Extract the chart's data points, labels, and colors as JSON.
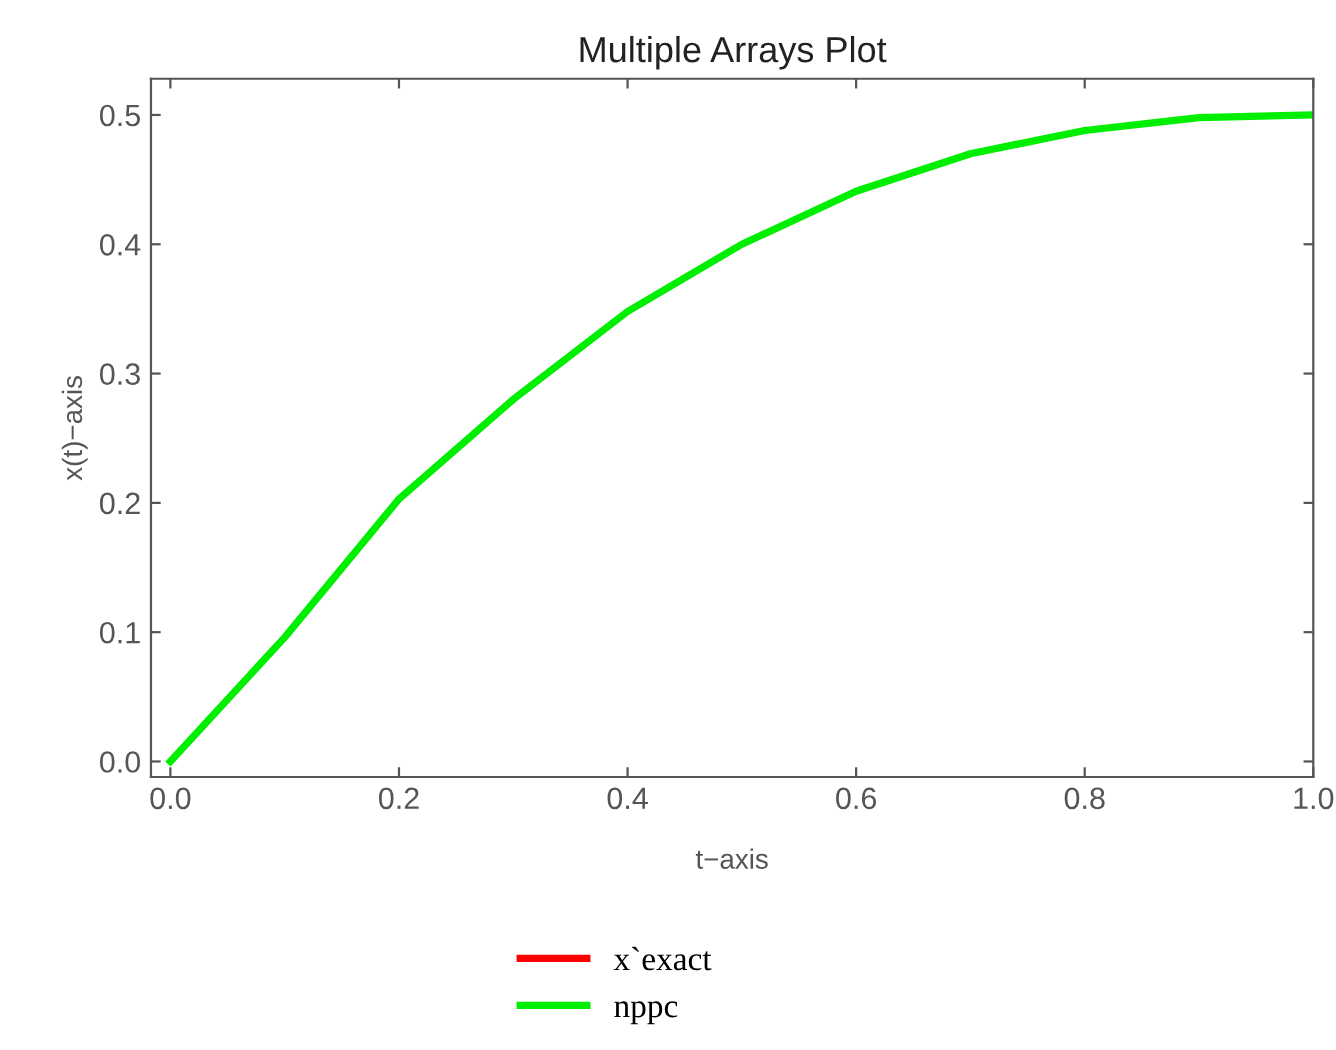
{
  "chart_data": {
    "type": "line",
    "title": "Multiple Arrays Plot",
    "xlabel": "t−axis",
    "ylabel": "x(t)−axis",
    "x": [
      0,
      0.1,
      0.2,
      0.3,
      0.4,
      0.5,
      0.6,
      0.7,
      0.8,
      0.9,
      1.0
    ],
    "series": [
      {
        "name": "x`exact",
        "color": "#ff0000",
        "values": [
          null,
          null,
          null,
          null,
          null,
          null,
          null,
          null,
          null,
          null,
          null
        ]
      },
      {
        "name": "nppc",
        "color": "#00ee00",
        "values": [
          0,
          0.096,
          0.203,
          0.28,
          0.348,
          0.4,
          0.441,
          0.47,
          0.488,
          0.498,
          0.5
        ]
      }
    ],
    "xlim": [
      -0.017,
      1.0
    ],
    "ylim": [
      -0.012,
      0.528
    ],
    "xticks": [
      {
        "value": 0,
        "label": "0.0"
      },
      0.2,
      0.4,
      0.6,
      0.8,
      {
        "value": 1.0,
        "label": "1.0"
      }
    ],
    "yticks": [
      {
        "value": 0,
        "label": "0.0"
      },
      0.1,
      0.2,
      0.3,
      0.4,
      0.5
    ],
    "grid": false,
    "legend": "bottom"
  }
}
